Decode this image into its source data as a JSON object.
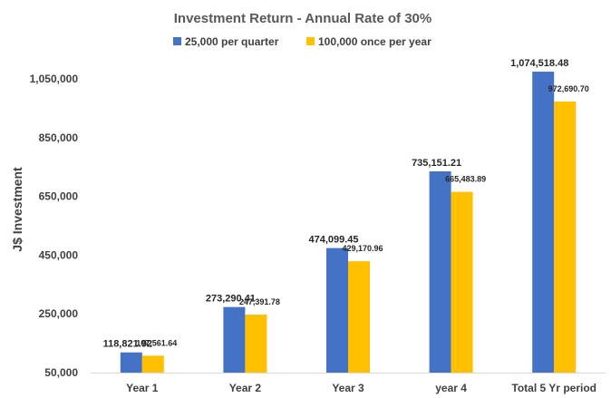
{
  "chart_data": {
    "type": "bar",
    "title": "Investment Return - Annual Rate of 30%",
    "ylabel": "J$ Investment",
    "xlabel": "",
    "categories": [
      "Year 1",
      "Year 2",
      "Year 3",
      "year 4",
      "Total 5 Yr period"
    ],
    "series": [
      {
        "name": "25,000 per quarter",
        "color": "#4472C4",
        "values": [
          118821.92,
          273290.41,
          474099.45,
          735151.21,
          1074518.48
        ],
        "labels": [
          "118,821.92",
          "273,290.41",
          "474,099.45",
          "735,151.21",
          "1,074,518.48"
        ]
      },
      {
        "name": "100,000 once per year",
        "color": "#FFC000",
        "values": [
          107561.64,
          247391.78,
          429170.96,
          665483.89,
          972690.7
        ],
        "labels": [
          "107,561.64",
          "247,391.78",
          "429,170.96",
          "665,483.89",
          "972,690.70"
        ]
      }
    ],
    "ylim": [
      50000,
      1150000
    ],
    "yticks": [
      50000,
      250000,
      450000,
      650000,
      850000,
      1050000
    ],
    "ytick_labels": [
      "50,000",
      "250,000",
      "450,000",
      "650,000",
      "850,000",
      "1,050,000"
    ],
    "grid": false,
    "legend_position": "top-center"
  }
}
